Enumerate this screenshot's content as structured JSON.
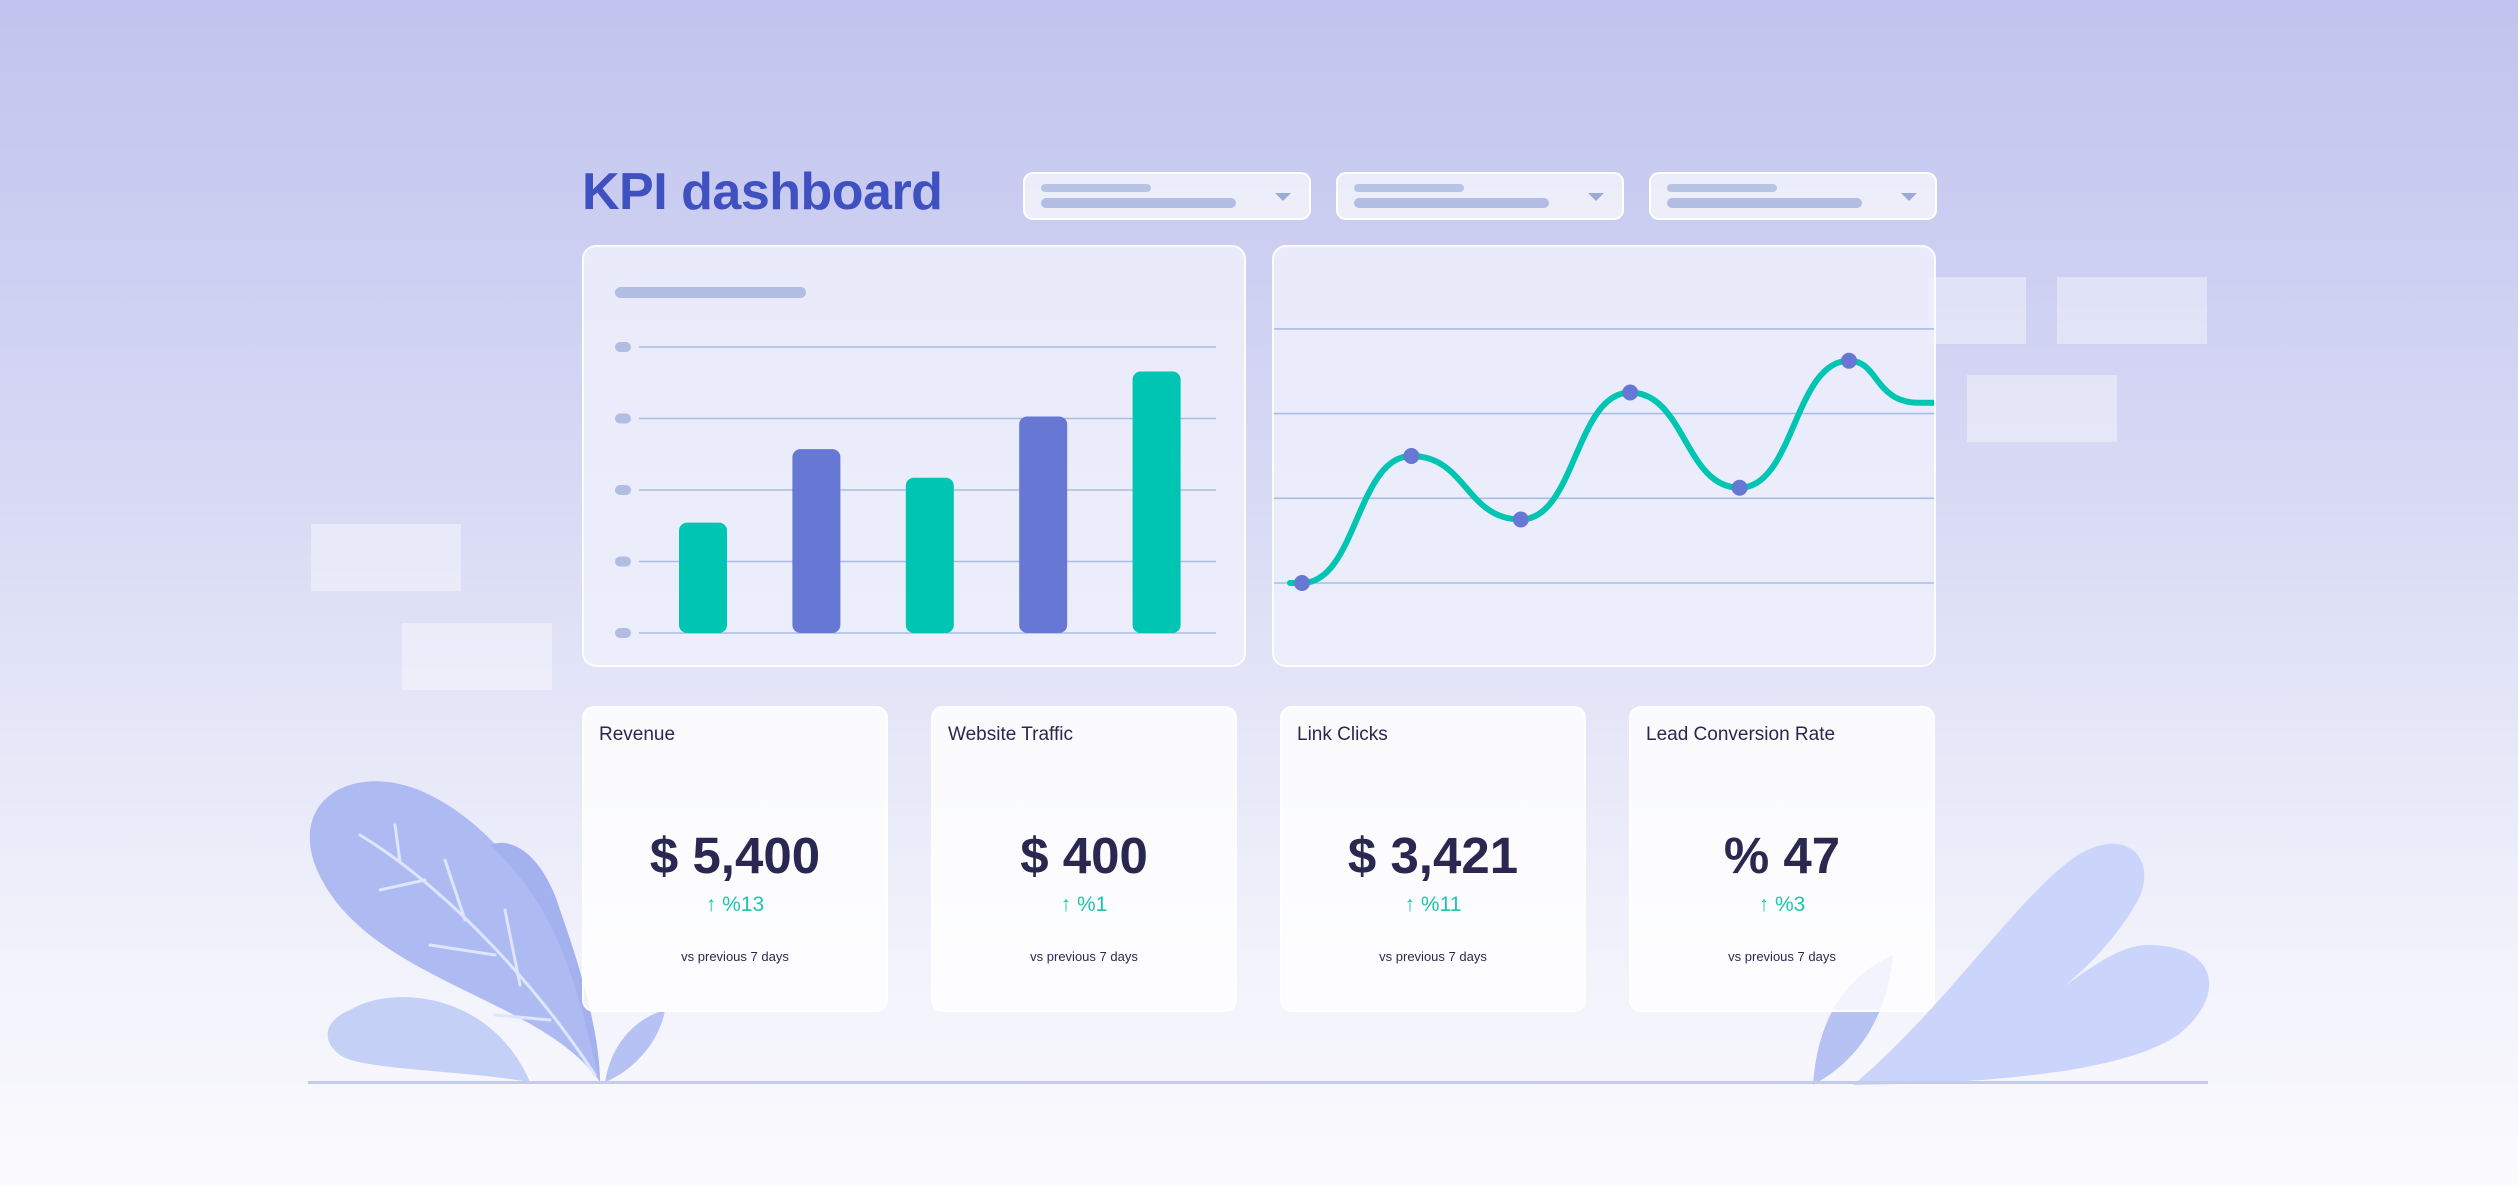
{
  "header": {
    "title": "KPI dashboard"
  },
  "filters": [
    {
      "name": "filter-1"
    },
    {
      "name": "filter-2"
    },
    {
      "name": "filter-3"
    }
  ],
  "colors": {
    "accent": "#3f51c0",
    "teal": "#00c5b2",
    "purple": "#6678d4",
    "text": "#2a2850"
  },
  "chart_data": [
    {
      "type": "bar",
      "categories": [
        "",
        "",
        "",
        "",
        ""
      ],
      "values": [
        27,
        45,
        38,
        53,
        64
      ],
      "ylim": [
        0,
        70
      ],
      "grid": true,
      "bar_colors": [
        "#00c5b2",
        "#6678d4",
        "#00c5b2",
        "#6678d4",
        "#00c5b2"
      ]
    },
    {
      "type": "line",
      "x": [
        1,
        2,
        3,
        4,
        5,
        6
      ],
      "y": [
        0,
        20,
        10,
        30,
        15,
        35
      ],
      "ylim": [
        0,
        40
      ],
      "grid": true,
      "color": "#00c5b2",
      "marker_color": "#6678d4"
    }
  ],
  "kpis": [
    {
      "label": "Revenue",
      "value": "$ 5,400",
      "change": "↑ %13",
      "comparison": "vs previous 7 days"
    },
    {
      "label": "Website Traffic",
      "value": "$ 400",
      "change": "↑ %1",
      "comparison": "vs previous 7 days"
    },
    {
      "label": "Link Clicks",
      "value": "$ 3,421",
      "change": "↑ %11",
      "comparison": "vs previous 7 days"
    },
    {
      "label": "Lead Conversion Rate",
      "value": "% 47",
      "change": "↑ %3",
      "comparison": "vs previous 7 days"
    }
  ]
}
